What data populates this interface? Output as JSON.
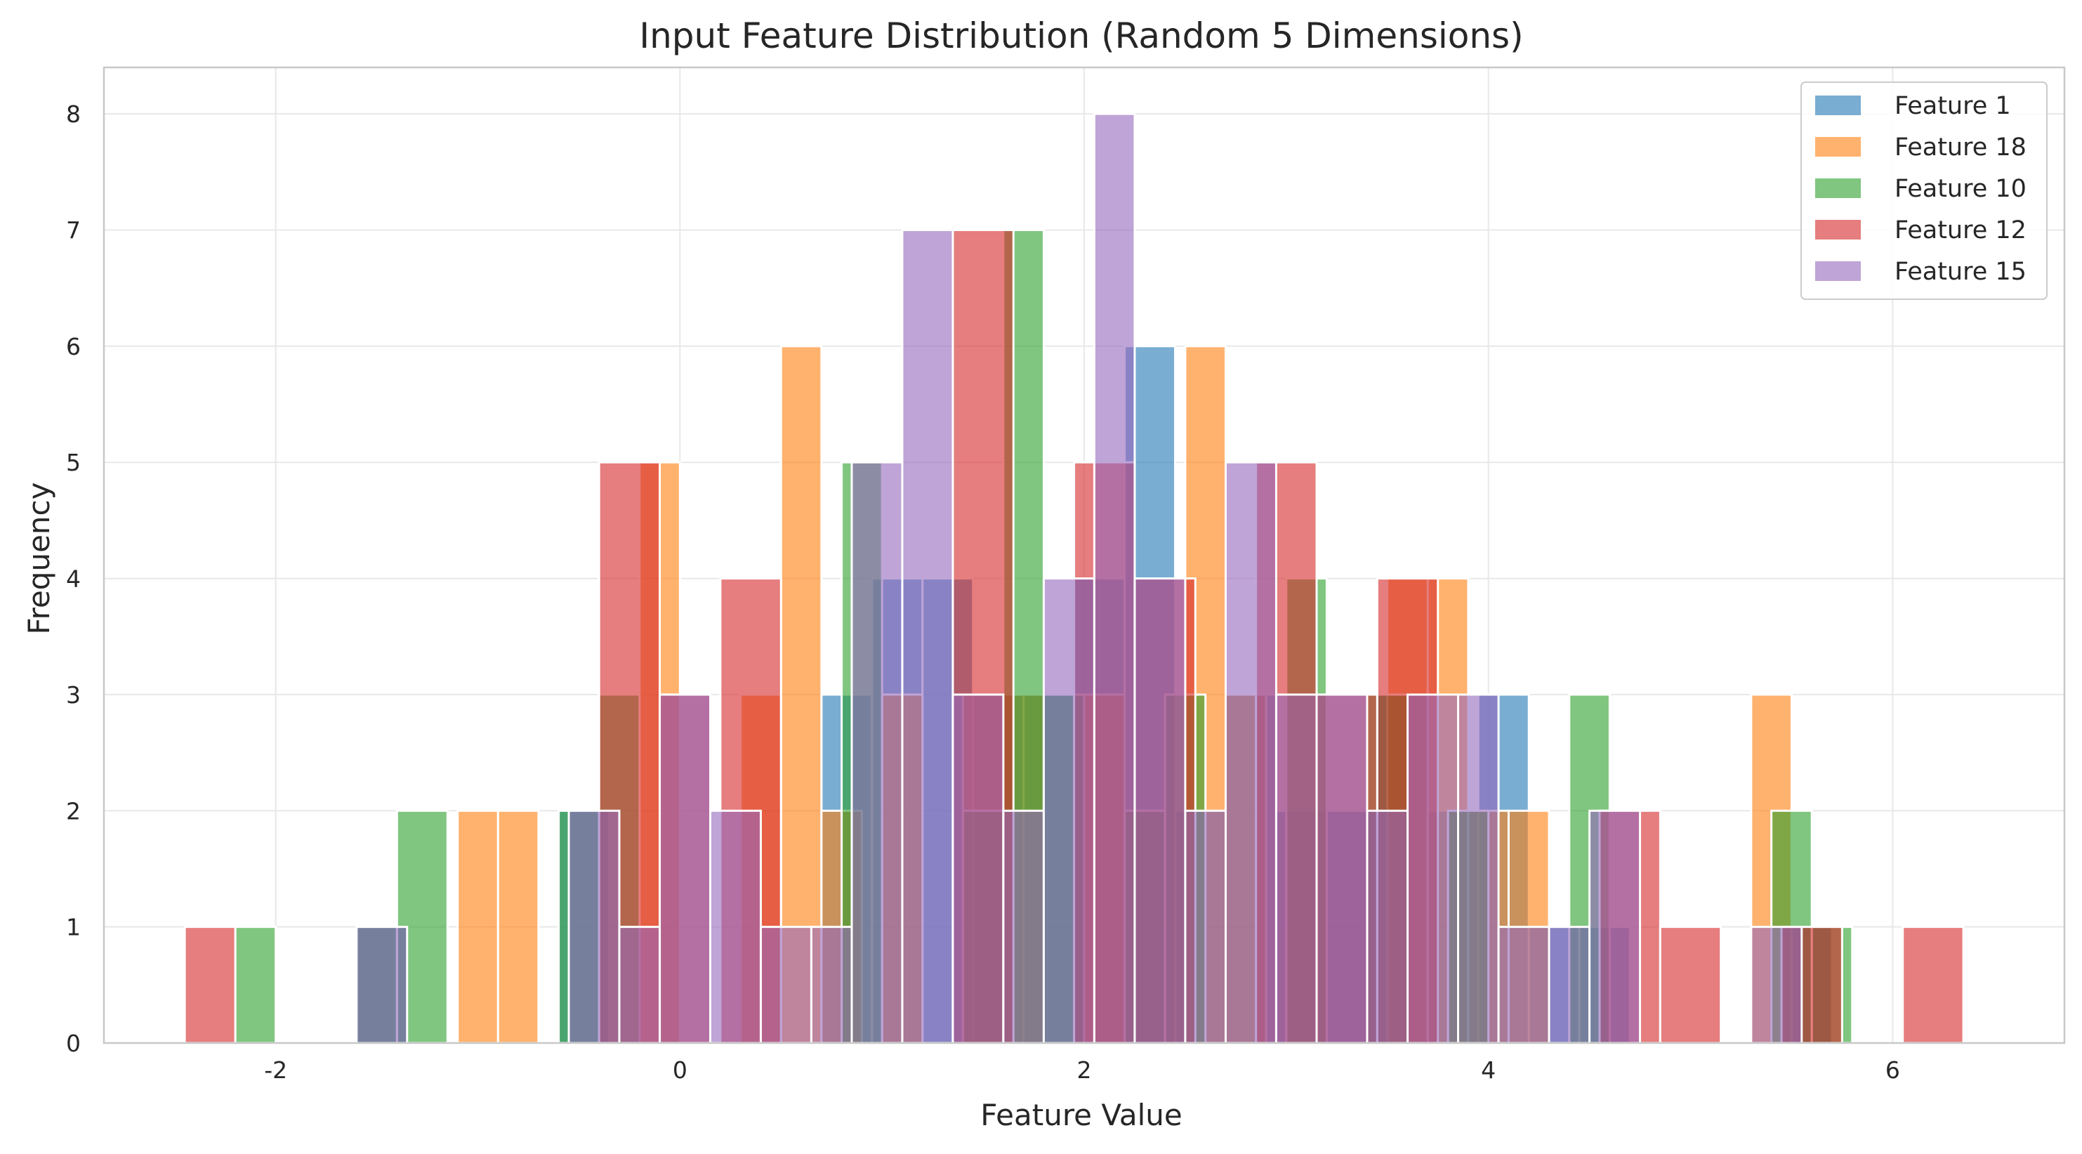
{
  "chart_data": {
    "type": "histogram",
    "title": "Input Feature Distribution (Random 5 Dimensions)",
    "xlabel": "Feature Value",
    "ylabel": "Frequency",
    "xlim": [
      -2.85,
      6.85
    ],
    "ylim": [
      0,
      8.4
    ],
    "xticks": [
      -2,
      0,
      2,
      4,
      6
    ],
    "xtick_labels": [
      "-2",
      "0",
      "2",
      "4",
      "6"
    ],
    "yticks": [
      0,
      1,
      2,
      3,
      4,
      5,
      6,
      7,
      8
    ],
    "ytick_labels": [
      "0",
      "1",
      "2",
      "3",
      "4",
      "5",
      "6",
      "7",
      "8"
    ],
    "grid": true,
    "legend_position": "top-right",
    "series": [
      {
        "name": "Feature 1",
        "color": "#1f77b4",
        "opacity": 0.6,
        "bins": [
          [
            -1.6,
            -1.35,
            1
          ],
          [
            -0.6,
            -0.35,
            2
          ],
          [
            0.7,
            0.95,
            3
          ],
          [
            0.95,
            1.2,
            4
          ],
          [
            1.2,
            1.45,
            4
          ],
          [
            1.45,
            1.7,
            3
          ],
          [
            1.7,
            1.95,
            3
          ],
          [
            1.95,
            2.2,
            4
          ],
          [
            2.2,
            2.45,
            6
          ],
          [
            2.45,
            2.7,
            2
          ],
          [
            2.7,
            2.95,
            3
          ],
          [
            2.95,
            3.2,
            2
          ],
          [
            3.2,
            3.45,
            2
          ],
          [
            3.45,
            3.7,
            3
          ],
          [
            3.7,
            3.95,
            2
          ],
          [
            3.95,
            4.2,
            3
          ],
          [
            4.2,
            4.45,
            1
          ],
          [
            4.45,
            4.7,
            1
          ],
          [
            5.45,
            5.7,
            1
          ]
        ]
      },
      {
        "name": "Feature 18",
        "color": "#ff7f0e",
        "opacity": 0.6,
        "bins": [
          [
            -1.1,
            -0.9,
            2
          ],
          [
            -0.9,
            -0.7,
            2
          ],
          [
            -0.2,
            0.0,
            5
          ],
          [
            0.3,
            0.5,
            3
          ],
          [
            0.5,
            0.7,
            6
          ],
          [
            0.7,
            0.9,
            2
          ],
          [
            1.0,
            1.2,
            3
          ],
          [
            1.4,
            1.6,
            3
          ],
          [
            1.6,
            1.8,
            3
          ],
          [
            2.0,
            2.2,
            3
          ],
          [
            2.5,
            2.7,
            6
          ],
          [
            2.7,
            2.9,
            3
          ],
          [
            3.0,
            3.2,
            3
          ],
          [
            3.5,
            3.7,
            4
          ],
          [
            3.7,
            3.9,
            4
          ],
          [
            3.9,
            4.1,
            2
          ],
          [
            4.1,
            4.3,
            2
          ],
          [
            5.3,
            5.5,
            3
          ]
        ]
      },
      {
        "name": "Feature 10",
        "color": "#2ca02c",
        "opacity": 0.6,
        "bins": [
          [
            -2.2,
            -2.0,
            1
          ],
          [
            -1.6,
            -1.4,
            1
          ],
          [
            -1.4,
            -1.15,
            2
          ],
          [
            -0.6,
            -0.4,
            2
          ],
          [
            -0.4,
            -0.2,
            3
          ],
          [
            0.8,
            1.0,
            5
          ],
          [
            1.4,
            1.6,
            2
          ],
          [
            1.6,
            1.8,
            7
          ],
          [
            1.8,
            2.0,
            3
          ],
          [
            2.2,
            2.4,
            2
          ],
          [
            2.4,
            2.6,
            3
          ],
          [
            3.0,
            3.2,
            4
          ],
          [
            3.4,
            3.6,
            3
          ],
          [
            3.8,
            4.0,
            2
          ],
          [
            4.4,
            4.6,
            3
          ],
          [
            5.4,
            5.6,
            2
          ],
          [
            5.6,
            5.8,
            1
          ]
        ]
      },
      {
        "name": "Feature 12",
        "color": "#d62728",
        "opacity": 0.6,
        "bins": [
          [
            -2.45,
            -2.2,
            1
          ],
          [
            -0.4,
            -0.1,
            5
          ],
          [
            -0.1,
            0.15,
            3
          ],
          [
            0.2,
            0.5,
            4
          ],
          [
            1.35,
            1.65,
            7
          ],
          [
            1.95,
            2.25,
            5
          ],
          [
            2.25,
            2.55,
            4
          ],
          [
            2.85,
            3.15,
            5
          ],
          [
            3.15,
            3.45,
            3
          ],
          [
            3.45,
            3.75,
            4
          ],
          [
            4.55,
            4.85,
            2
          ],
          [
            4.85,
            5.15,
            1
          ],
          [
            5.45,
            5.75,
            1
          ],
          [
            6.05,
            6.35,
            1
          ]
        ]
      },
      {
        "name": "Feature 15",
        "color": "#9467bd",
        "opacity": 0.6,
        "bins": [
          [
            -1.6,
            -1.35,
            1
          ],
          [
            -0.55,
            -0.3,
            2
          ],
          [
            -0.3,
            -0.1,
            1
          ],
          [
            -0.1,
            0.15,
            3
          ],
          [
            0.15,
            0.4,
            2
          ],
          [
            0.4,
            0.65,
            1
          ],
          [
            0.65,
            0.85,
            1
          ],
          [
            0.85,
            1.1,
            5
          ],
          [
            1.1,
            1.35,
            7
          ],
          [
            1.35,
            1.6,
            3
          ],
          [
            1.6,
            1.8,
            2
          ],
          [
            1.8,
            2.05,
            4
          ],
          [
            2.05,
            2.25,
            8
          ],
          [
            2.25,
            2.5,
            4
          ],
          [
            2.5,
            2.7,
            2
          ],
          [
            2.7,
            2.95,
            5
          ],
          [
            2.95,
            3.15,
            3
          ],
          [
            3.15,
            3.4,
            3
          ],
          [
            3.4,
            3.6,
            2
          ],
          [
            3.6,
            3.85,
            3
          ],
          [
            3.85,
            4.05,
            3
          ],
          [
            4.05,
            4.3,
            1
          ],
          [
            4.3,
            4.5,
            1
          ],
          [
            4.5,
            4.75,
            2
          ],
          [
            5.3,
            5.55,
            1
          ]
        ]
      }
    ]
  }
}
